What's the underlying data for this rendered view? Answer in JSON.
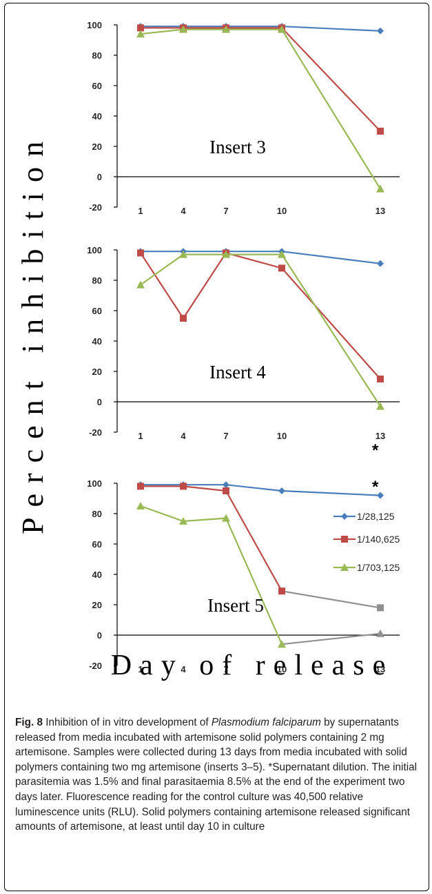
{
  "chart_data": [
    {
      "type": "line",
      "title": "Insert 3",
      "ylabel": "Percent inhibition",
      "xlabel": "Day of release",
      "x": [
        1,
        4,
        7,
        10,
        13
      ],
      "yticks": [
        100,
        80,
        60,
        40,
        20,
        0,
        -20
      ],
      "xticks": [
        "1",
        "4",
        "7",
        "10",
        "13"
      ],
      "ylim": [
        -20,
        100
      ],
      "series": [
        {
          "name": "1/28,125",
          "color": "#4a7ebb",
          "marker": "diamond",
          "values": [
            99,
            99,
            99,
            99,
            96
          ]
        },
        {
          "name": "1/140,625",
          "color": "#be4b48",
          "marker": "square",
          "values": [
            98,
            98,
            98,
            98,
            30
          ]
        },
        {
          "name": "1/703,125",
          "color": "#98b954",
          "marker": "triangle",
          "values": [
            94,
            97,
            97,
            97,
            -8
          ]
        }
      ]
    },
    {
      "type": "line",
      "title": "Insert 4",
      "ylabel": "Percent inhibition",
      "xlabel": "Day of release",
      "x": [
        1,
        4,
        7,
        10,
        13
      ],
      "yticks": [
        100,
        80,
        60,
        40,
        20,
        0,
        -20
      ],
      "xticks": [
        "1",
        "4",
        "7",
        "10",
        "13"
      ],
      "ylim": [
        -20,
        100
      ],
      "annotation": "*",
      "series": [
        {
          "name": "1/28,125",
          "color": "#4a7ebb",
          "marker": "diamond",
          "values": [
            99,
            99,
            99,
            99,
            91
          ]
        },
        {
          "name": "1/140,625",
          "color": "#be4b48",
          "marker": "square",
          "values": [
            98,
            55,
            98,
            88,
            15
          ]
        },
        {
          "name": "1/703,125",
          "color": "#98b954",
          "marker": "triangle",
          "values": [
            77,
            97,
            97,
            97,
            -3
          ]
        }
      ]
    },
    {
      "type": "line",
      "title": "Insert 5",
      "ylabel": "Percent inhibition",
      "xlabel": "Day of release",
      "x": [
        1,
        4,
        7,
        10,
        13
      ],
      "yticks": [
        100,
        80,
        60,
        40,
        20,
        0,
        -20
      ],
      "xticks": [
        "1",
        "4",
        "7",
        "10",
        "13"
      ],
      "ylim": [
        -20,
        100
      ],
      "annotation": "*",
      "legend": "right",
      "series": [
        {
          "name": "1/28,125",
          "color": "#4a7ebb",
          "marker": "diamond",
          "values": [
            99,
            99,
            99,
            95,
            92
          ]
        },
        {
          "name": "1/140,625",
          "color": "#be4b48",
          "marker": "square",
          "values": [
            98,
            98,
            95,
            29,
            18
          ]
        },
        {
          "name": "1/703,125",
          "color": "#98b954",
          "marker": "triangle",
          "values": [
            85,
            75,
            77,
            -6,
            1
          ]
        }
      ],
      "missing_segment_color": "#909090"
    }
  ],
  "axis_titles": {
    "y": "Percent inhibition",
    "x": "Day of release"
  },
  "caption": {
    "label": "Fig. 8",
    "text_before": "Inhibition of in vitro development of",
    "species": "Plasmodium falciparum",
    "text_after": "by supernatants released from media incubated with artemisone solid polymers containing 2 mg artemisone. Samples were collected during 13 days from media incubated with solid polymers containing two mg artemisone (inserts 3–5). *Supernatant dilution. The initial parasitemia was 1.5% and final parasitaemia 8.5% at the end of the experiment two days later. Fluorescence reading for the control culture was 40,500 relative luminescence units (RLU). Solid polymers containing artemisone released significant amounts of artemisone, at least until day 10 in culture"
  }
}
